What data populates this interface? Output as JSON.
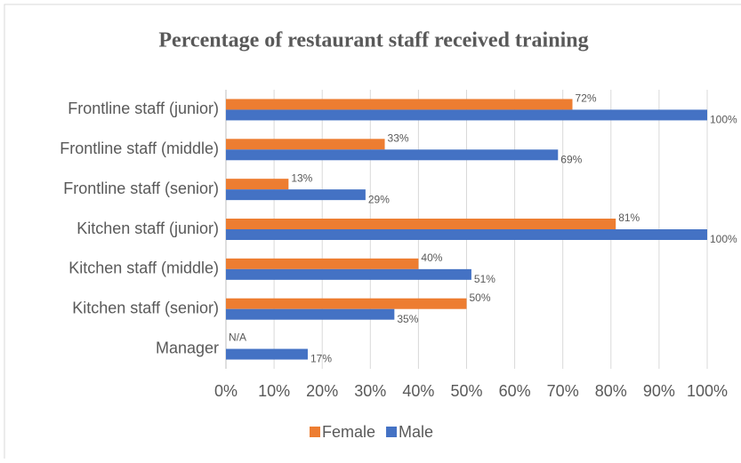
{
  "chart_data": {
    "type": "bar",
    "orientation": "horizontal",
    "title": "Percentage of restaurant staff received training",
    "categories": [
      "Frontline staff (junior)",
      "Frontline staff (middle)",
      "Frontline staff (senior)",
      "Kitchen staff (junior)",
      "Kitchen staff (middle)",
      "Kitchen staff (senior)",
      "Manager"
    ],
    "series": [
      {
        "name": "Female",
        "color": "#ED7D31",
        "values": [
          72,
          33,
          13,
          81,
          40,
          50,
          null
        ],
        "value_labels": [
          "72%",
          "33%",
          "13%",
          "81%",
          "40%",
          "50%",
          "N/A"
        ]
      },
      {
        "name": "Male",
        "color": "#4472C4",
        "values": [
          100,
          69,
          29,
          100,
          51,
          35,
          17
        ],
        "value_labels": [
          "100%",
          "69%",
          "29%",
          "100%",
          "51%",
          "35%",
          "17%"
        ]
      }
    ],
    "xlim": [
      0,
      100
    ],
    "xticks": [
      {
        "value": 0,
        "label": "0%"
      },
      {
        "value": 10,
        "label": "10%"
      },
      {
        "value": 20,
        "label": "20%"
      },
      {
        "value": 30,
        "label": "30%"
      },
      {
        "value": 40,
        "label": "40%"
      },
      {
        "value": 50,
        "label": "50%"
      },
      {
        "value": 60,
        "label": "60%"
      },
      {
        "value": 70,
        "label": "70%"
      },
      {
        "value": 80,
        "label": "80%"
      },
      {
        "value": 90,
        "label": "90%"
      },
      {
        "value": 100,
        "label": "100%"
      }
    ],
    "grid": true,
    "legend": "bottom"
  }
}
